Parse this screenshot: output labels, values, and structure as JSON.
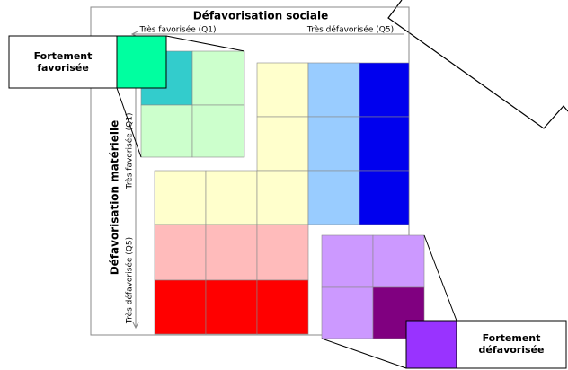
{
  "title": "Défavorisation sociale",
  "x_axis": {
    "low": "Très favorisée (Q1)",
    "high": "Très défavorisée (Q5)"
  },
  "y_axis": {
    "title": "Défavorisation matérielle",
    "low": "Très favorisée (Q1)",
    "high": "Très défavorisée (Q5)"
  },
  "callouts": {
    "favored": "Fortement favorisée",
    "deprived": "Fortement défavorisée"
  }
}
